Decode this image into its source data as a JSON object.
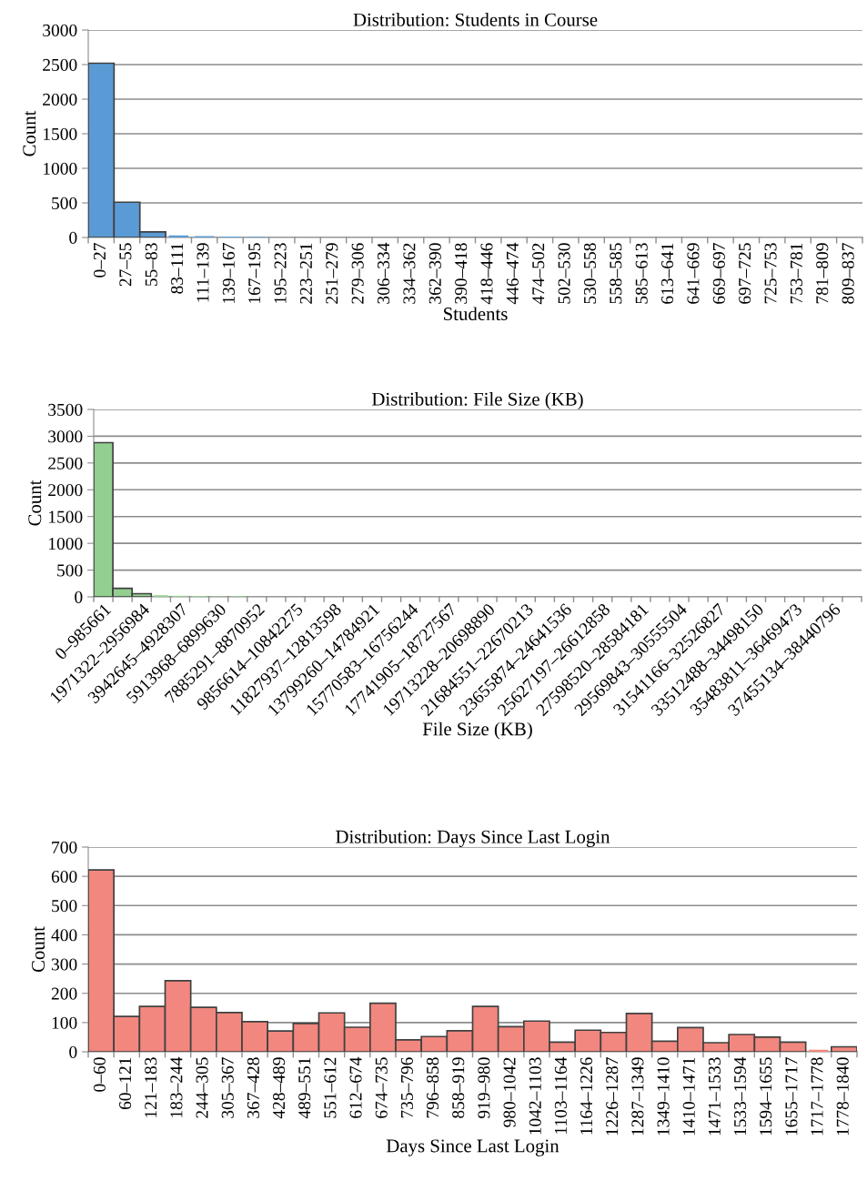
{
  "chart_data": [
    {
      "type": "bar",
      "title": "Distribution: Students in Course",
      "xlabel": "Students",
      "ylabel": "Count",
      "color": "#5b9bd5",
      "grid": "y",
      "ylim": [
        0,
        3000
      ],
      "yticks": [
        0,
        500,
        1000,
        1500,
        2000,
        2500,
        3000
      ],
      "categories": [
        "0–27",
        "27–55",
        "55–83",
        "83–111",
        "111–139",
        "139–167",
        "167–195",
        "195–223",
        "223–251",
        "251–279",
        "279–306",
        "306–334",
        "334–362",
        "362–390",
        "390–418",
        "418–446",
        "446–474",
        "474–502",
        "502–530",
        "530–558",
        "558–585",
        "585–613",
        "613–641",
        "641–669",
        "669–697",
        "697–725",
        "725–753",
        "753–781",
        "781–809",
        "809–837"
      ],
      "values": [
        2520,
        510,
        80,
        30,
        20,
        12,
        8,
        0,
        0,
        0,
        0,
        0,
        0,
        0,
        0,
        0,
        0,
        0,
        0,
        0,
        0,
        0,
        0,
        0,
        0,
        0,
        0,
        0,
        0,
        0
      ]
    },
    {
      "type": "bar",
      "title": "Distribution: File Size (KB)",
      "xlabel": "File Size (KB)",
      "ylabel": "Count",
      "color": "#93cf8f",
      "grid": "y",
      "ylim": [
        0,
        3500
      ],
      "yticks": [
        0,
        500,
        1000,
        1500,
        2000,
        2500,
        3000,
        3500
      ],
      "categories": [
        "0–985661",
        null,
        "1971322–2956984",
        null,
        "3942645–4928307",
        null,
        "5913968–6899630",
        null,
        "7885291–8870952",
        null,
        "9856614–10842275",
        null,
        "11827937–12813598",
        null,
        "13799260–14784921",
        null,
        "15770583–16756244",
        null,
        "17741905–18727567",
        null,
        "19713228–20698890",
        null,
        "21684551–22670213",
        null,
        "23655874–24641536",
        null,
        "25627197–26612858",
        null,
        "27598520–28584181",
        null,
        "29569843–30555504",
        null,
        "31541166–32526827",
        null,
        "33512488–34498150",
        null,
        "35483811–36469473",
        null,
        "37455134–38440796",
        null
      ],
      "values": [
        2880,
        160,
        60,
        30,
        20,
        15,
        10,
        12,
        0,
        0,
        0,
        0,
        0,
        0,
        0,
        0,
        0,
        0,
        0,
        0,
        0,
        0,
        0,
        0,
        0,
        0,
        0,
        0,
        0,
        0,
        0,
        0,
        0,
        0,
        0,
        0,
        0,
        0,
        0,
        0
      ]
    },
    {
      "type": "bar",
      "title": "Distribution: Days Since Last Login",
      "xlabel": "Days Since Last Login",
      "ylabel": "Count",
      "color": "#f1877e",
      "grid": "y",
      "ylim": [
        0,
        700
      ],
      "yticks": [
        0,
        100,
        200,
        300,
        400,
        500,
        600,
        700
      ],
      "categories": [
        "0–60",
        "60–121",
        "121–183",
        "183–244",
        "244–305",
        "305–367",
        "367–428",
        "428–489",
        "489–551",
        "551–612",
        "612–674",
        "674–735",
        "735–796",
        "796–858",
        "858–919",
        "919–980",
        "980–1042",
        "1042–1103",
        "1103–1164",
        "1164–1226",
        "1226–1287",
        "1287–1349",
        "1349–1410",
        "1410–1471",
        "1471–1533",
        "1533–1594",
        "1594–1655",
        "1655–1717",
        "1717–1778",
        "1778–1840"
      ],
      "values": [
        622,
        121,
        155,
        243,
        152,
        134,
        103,
        71,
        97,
        133,
        84,
        166,
        41,
        52,
        72,
        155,
        86,
        105,
        33,
        74,
        66,
        131,
        36,
        83,
        31,
        59,
        50,
        33,
        7,
        17
      ]
    }
  ]
}
